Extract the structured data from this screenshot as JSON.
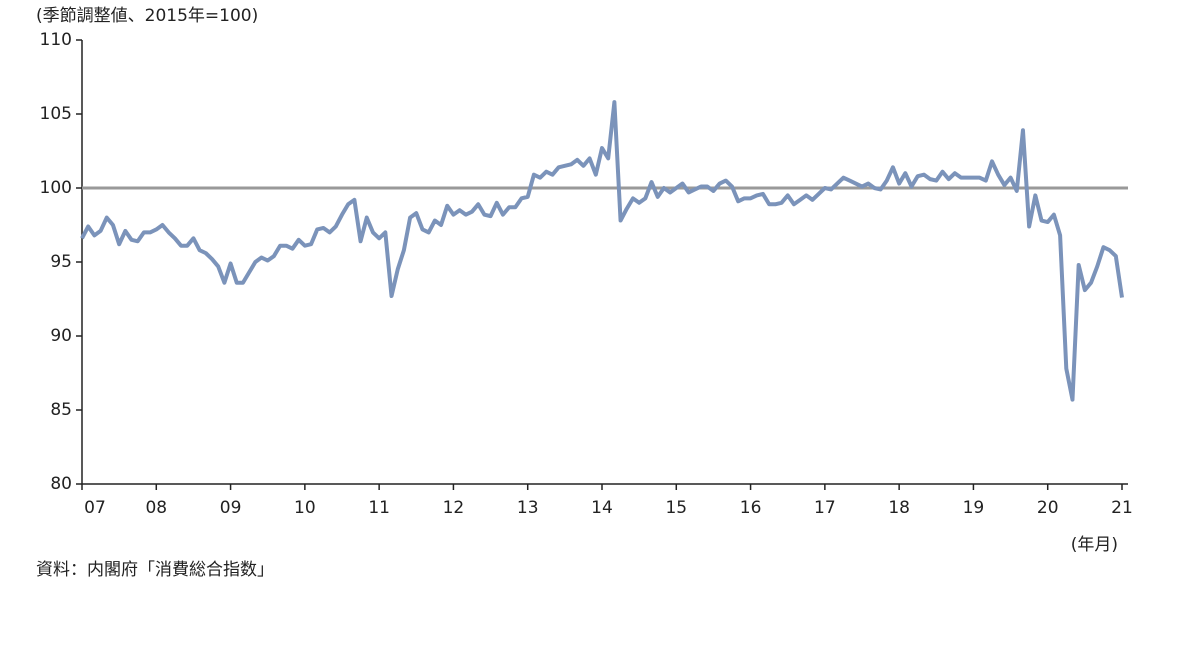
{
  "chart_data": {
    "type": "line",
    "subtitle": "(季節調整値、2015年=100)",
    "x_label": "(年月)",
    "source": "資料：内閣府「消費総合指数」",
    "categories": [
      "07",
      null,
      null,
      null,
      null,
      null,
      null,
      null,
      null,
      null,
      null,
      null,
      "08",
      null,
      null,
      null,
      null,
      null,
      null,
      null,
      null,
      null,
      null,
      null,
      "09",
      null,
      null,
      null,
      null,
      null,
      null,
      null,
      null,
      null,
      null,
      null,
      "10",
      null,
      null,
      null,
      null,
      null,
      null,
      null,
      null,
      null,
      null,
      null,
      "11",
      null,
      null,
      null,
      null,
      null,
      null,
      null,
      null,
      null,
      null,
      null,
      "12",
      null,
      null,
      null,
      null,
      null,
      null,
      null,
      null,
      null,
      null,
      null,
      "13",
      null,
      null,
      null,
      null,
      null,
      null,
      null,
      null,
      null,
      null,
      null,
      "14",
      null,
      null,
      null,
      null,
      null,
      null,
      null,
      null,
      null,
      null,
      null,
      "15",
      null,
      null,
      null,
      null,
      null,
      null,
      null,
      null,
      null,
      null,
      null,
      "16",
      null,
      null,
      null,
      null,
      null,
      null,
      null,
      null,
      null,
      null,
      null,
      "17",
      null,
      null,
      null,
      null,
      null,
      null,
      null,
      null,
      null,
      null,
      null,
      "18",
      null,
      null,
      null,
      null,
      null,
      null,
      null,
      null,
      null,
      null,
      null,
      "19",
      null,
      null,
      null,
      null,
      null,
      null,
      null,
      null,
      null,
      null,
      null,
      "20",
      null,
      null,
      null,
      null,
      null,
      null,
      null,
      null,
      null,
      null,
      null,
      "21"
    ],
    "values": [
      96.6,
      97.4,
      96.8,
      97.1,
      98.0,
      97.5,
      96.2,
      97.1,
      96.5,
      96.4,
      97.0,
      97.0,
      97.2,
      97.5,
      97.0,
      96.6,
      96.1,
      96.1,
      96.6,
      95.8,
      95.6,
      95.2,
      94.7,
      93.6,
      94.9,
      93.6,
      93.6,
      94.3,
      95.0,
      95.3,
      95.1,
      95.4,
      96.1,
      96.1,
      95.9,
      96.5,
      96.1,
      96.2,
      97.2,
      97.3,
      97.0,
      97.4,
      98.2,
      98.9,
      99.2,
      96.4,
      98.0,
      97.0,
      96.6,
      97.0,
      92.7,
      94.5,
      95.8,
      98.0,
      98.3,
      97.2,
      97.0,
      97.8,
      97.5,
      98.8,
      98.2,
      98.5,
      98.2,
      98.4,
      98.9,
      98.2,
      98.1,
      99.0,
      98.2,
      98.7,
      98.7,
      99.3,
      99.4,
      100.9,
      100.7,
      101.1,
      100.9,
      101.4,
      101.5,
      101.6,
      101.9,
      101.5,
      102.0,
      100.9,
      102.7,
      102.0,
      105.8,
      97.8,
      98.6,
      99.3,
      99.0,
      99.3,
      100.4,
      99.4,
      100.0,
      99.7,
      100.0,
      100.3,
      99.7,
      99.9,
      100.1,
      100.1,
      99.8,
      100.3,
      100.5,
      100.1,
      99.1,
      99.3,
      99.3,
      99.5,
      99.6,
      98.9,
      98.9,
      99.0,
      99.5,
      98.9,
      99.2,
      99.5,
      99.2,
      99.6,
      100.0,
      99.9,
      100.3,
      100.7,
      100.5,
      100.3,
      100.1,
      100.3,
      100.0,
      99.9,
      100.5,
      101.4,
      100.3,
      101.0,
      100.1,
      100.8,
      100.9,
      100.6,
      100.5,
      101.1,
      100.6,
      101.0,
      100.7,
      100.7,
      100.7,
      100.7,
      100.5,
      101.8,
      100.9,
      100.2,
      100.7,
      99.8,
      103.9,
      97.4,
      99.5,
      97.8,
      97.7,
      98.2,
      96.8,
      87.8,
      85.7,
      94.8,
      93.1,
      93.6,
      94.7,
      96.0,
      95.8,
      95.4,
      92.6
    ],
    "color": "#7b93ba",
    "reference_line": 100,
    "ylim": [
      80,
      110
    ],
    "yticks": [
      80,
      85,
      90,
      95,
      100,
      105,
      110
    ]
  }
}
